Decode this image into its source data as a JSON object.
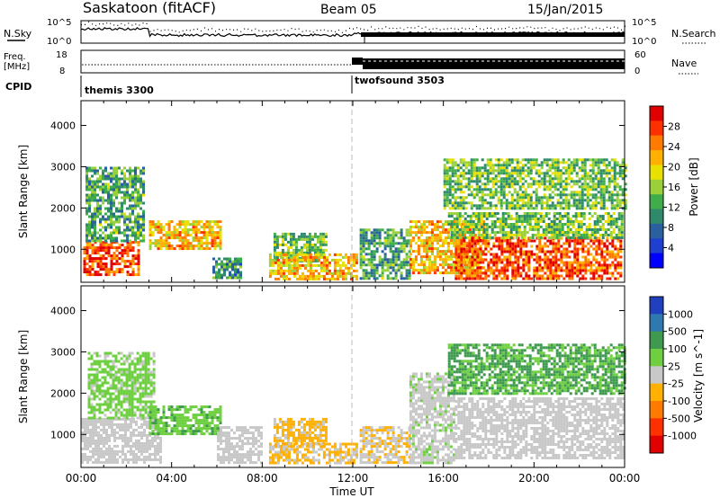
{
  "header": {
    "station": "Saskatoon (fitACF)",
    "beam": "Beam 05",
    "date": "15/Jan/2015"
  },
  "strip_labels": {
    "nsky": "N.Sky",
    "nsky_ticks": [
      "10^5",
      "10^0"
    ],
    "freq_lines": [
      "Freq.",
      "[MHz]"
    ],
    "freq_ticks": [
      "18",
      "8"
    ],
    "cpid": "CPID",
    "nsearch": "N.Search",
    "nsearch_ticks": [
      "10^5",
      "10^0"
    ],
    "nave": "Nave",
    "nave_ticks": [
      "60",
      "0"
    ]
  },
  "cpid_segments": [
    {
      "label": "themis 3300",
      "start_hour": 0,
      "end_hour": 12
    },
    {
      "label": "twofsound 3503",
      "start_hour": 12,
      "end_hour": 24
    }
  ],
  "x_axis": {
    "label": "Time UT",
    "ticks": [
      "00:00",
      "04:00",
      "08:00",
      "12:00",
      "16:00",
      "20:00",
      "00:00"
    ],
    "tick_hours": [
      0,
      4,
      8,
      12,
      16,
      20,
      24
    ]
  },
  "panels": [
    {
      "ylabel": "Slant Range [km]",
      "yticks": [
        "4000",
        "3000",
        "2000",
        "1000"
      ],
      "cbar_label": "Power [dB]",
      "cbar_ticks": [
        "28",
        "24",
        "20",
        "16",
        "12",
        "8",
        "4"
      ],
      "cbar_colors": [
        "#e00000",
        "#ff3000",
        "#ff7a00",
        "#ffb000",
        "#e8e000",
        "#9ad03a",
        "#3fae4a",
        "#2e8a6a",
        "#2a5fa0",
        "#1f3fd0",
        "#0000ff"
      ]
    },
    {
      "ylabel": "Slant Range [km]",
      "yticks": [
        "4000",
        "3000",
        "2000",
        "1000"
      ],
      "cbar_label": "Velocity [m s^-1]",
      "cbar_ticks": [
        "1000",
        "500",
        "100",
        "25",
        "-25",
        "-100",
        "-500",
        "-1000"
      ],
      "cbar_colors": [
        "#2040c0",
        "#2e7ab0",
        "#3f9a50",
        "#6ed040",
        "#c8c8c8",
        "#ffb000",
        "#ff7a00",
        "#ff3000",
        "#e00000"
      ]
    }
  ],
  "chart_data": [
    {
      "type": "heatmap",
      "title": "Power",
      "x_range_hours": [
        0,
        24
      ],
      "ylim_km": [
        200,
        4600
      ],
      "colorbar": {
        "label": "Power [dB]",
        "range": [
          0,
          32
        ]
      },
      "regions": [
        {
          "t": [
            0.1,
            2.5
          ],
          "r": [
            400,
            1200
          ],
          "v": 28
        },
        {
          "t": [
            0.2,
            2.8
          ],
          "r": [
            1200,
            3000
          ],
          "v": 12
        },
        {
          "t": [
            3.0,
            6.2
          ],
          "r": [
            1000,
            1700
          ],
          "v": 22
        },
        {
          "t": [
            5.8,
            7.0
          ],
          "r": [
            300,
            800
          ],
          "v": 10
        },
        {
          "t": [
            8.5,
            10.8
          ],
          "r": [
            700,
            1400
          ],
          "v": 14
        },
        {
          "t": [
            8.3,
            12.2
          ],
          "r": [
            300,
            900
          ],
          "v": 22
        },
        {
          "t": [
            12.3,
            14.5
          ],
          "r": [
            300,
            1500
          ],
          "v": 12
        },
        {
          "t": [
            14.5,
            17.8
          ],
          "r": [
            400,
            1700
          ],
          "v": 22
        },
        {
          "t": [
            16.5,
            23.8
          ],
          "r": [
            300,
            1300
          ],
          "v": 28
        },
        {
          "t": [
            16.2,
            23.9
          ],
          "r": [
            1300,
            1900
          ],
          "v": 14
        },
        {
          "t": [
            16.0,
            24.0
          ],
          "r": [
            2000,
            3200
          ],
          "v": 14
        }
      ]
    },
    {
      "type": "heatmap",
      "title": "Velocity",
      "x_range_hours": [
        0,
        24
      ],
      "ylim_km": [
        200,
        4600
      ],
      "colorbar": {
        "label": "Velocity [m s^-1]",
        "range": [
          -1000,
          1000
        ]
      },
      "regions": [
        {
          "t": [
            0.0,
            3.5
          ],
          "r": [
            300,
            1400
          ],
          "v": 0
        },
        {
          "t": [
            0.3,
            3.2
          ],
          "r": [
            1400,
            3000
          ],
          "v": 200
        },
        {
          "t": [
            3.0,
            6.2
          ],
          "r": [
            1000,
            1700
          ],
          "v": 300
        },
        {
          "t": [
            6.0,
            8.0
          ],
          "r": [
            300,
            1200
          ],
          "v": 0
        },
        {
          "t": [
            8.5,
            10.8
          ],
          "r": [
            700,
            1400
          ],
          "v": -200
        },
        {
          "t": [
            8.3,
            12.2
          ],
          "r": [
            300,
            800
          ],
          "v": -150
        },
        {
          "t": [
            12.3,
            14.5
          ],
          "r": [
            300,
            1200
          ],
          "v": -100
        },
        {
          "t": [
            14.5,
            16.5
          ],
          "r": [
            300,
            2500
          ],
          "v": 50
        },
        {
          "t": [
            16.5,
            24.0
          ],
          "r": [
            400,
            1900
          ],
          "v": 0
        },
        {
          "t": [
            16.2,
            24.0
          ],
          "r": [
            2000,
            3200
          ],
          "v": 400
        }
      ]
    }
  ]
}
